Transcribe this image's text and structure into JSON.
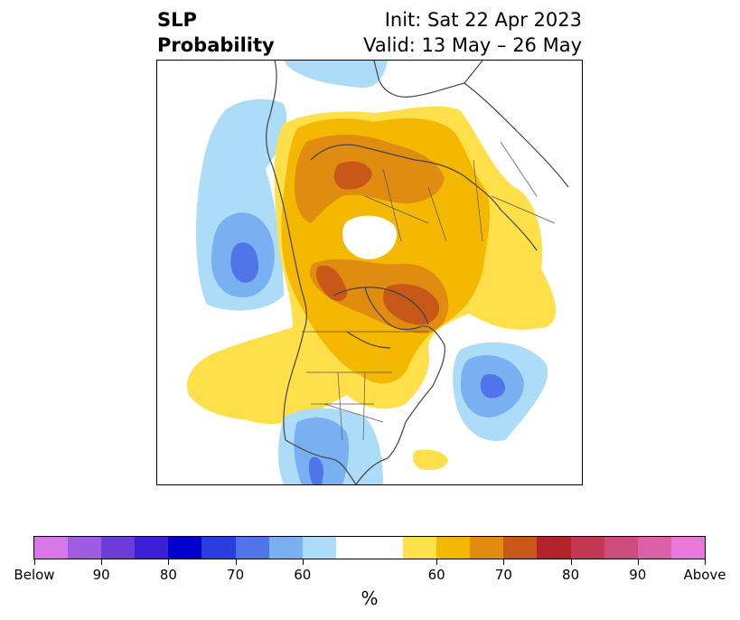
{
  "title": {
    "left_line1": "SLP",
    "left_line2": "Probability",
    "right_line1": "Init: Sat 22 Apr 2023",
    "right_line2": "Valid: 13 May – 26 May"
  },
  "colorbar": {
    "colors": [
      "#d977e8",
      "#a05ce0",
      "#6c3bd8",
      "#3a1fd6",
      "#0000cc",
      "#2a3ee0",
      "#4f75e8",
      "#78b0f2",
      "#addcf8",
      "#ffffff",
      "#ffffff",
      "#ffe04a",
      "#f5b800",
      "#e08c10",
      "#c8581a",
      "#b22228",
      "#c23850",
      "#cc4c7c",
      "#da60a8",
      "#e878dc"
    ],
    "tick_labels": [
      "Below",
      "90",
      "80",
      "70",
      "60",
      "60",
      "70",
      "80",
      "90",
      "Above"
    ],
    "unit": "%"
  },
  "map": {
    "legend_meaning": "probability of above/below normal sea level pressure",
    "colors": {
      "blue_light": "#addcf8",
      "blue_mid": "#78b0f2",
      "blue_dark": "#4f75e8",
      "yellow": "#ffe04a",
      "gold": "#f5b800",
      "orange": "#e08c10",
      "rust": "#c8581a",
      "border": "#444444"
    }
  }
}
